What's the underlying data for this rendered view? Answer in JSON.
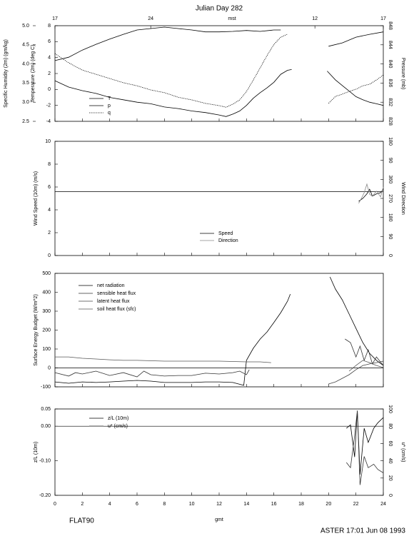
{
  "chart_data": [
    {
      "type": "line",
      "title": "Julian Day 282",
      "top_xlabel": "mst",
      "top_xticks": [
        {
          "value": 0,
          "label": "17"
        },
        {
          "value": 7,
          "label": "24"
        },
        {
          "value": 19,
          "label": "12"
        },
        {
          "value": 24,
          "label": "17"
        }
      ],
      "xlim": [
        0,
        24
      ],
      "ylabel": "Temperature (2m) (deg C)",
      "ylim": [
        -4,
        8
      ],
      "yticks": [
        -4,
        -2,
        0,
        2,
        4,
        6,
        8
      ],
      "y2label": "Pressure (mb)",
      "y2lim": [
        828,
        848
      ],
      "y2ticks": [
        828,
        832,
        836,
        840,
        844,
        848
      ],
      "y3label": "Specific Humidity (2m) (gm/kg)",
      "y3lim": [
        2.5,
        5.0
      ],
      "y3ticks": [
        2.5,
        {
          "value": 3,
          "label": "3.0"
        },
        3.5,
        {
          "value": 4,
          "label": "4.0"
        },
        4.5,
        {
          "value": 5,
          "label": "5.0"
        }
      ],
      "series": [
        {
          "name": "T",
          "color": "#000000",
          "style": "solid",
          "axis": "y",
          "x": [
            0,
            1,
            2,
            3,
            4,
            5,
            6,
            7,
            8,
            9,
            10,
            11,
            12,
            12.5,
            13,
            13.5,
            14,
            14.5,
            15,
            15.5,
            16,
            16.5,
            17,
            17.3,
            null,
            19.9,
            20.5,
            21,
            21.5,
            22,
            22.5,
            23,
            23.5,
            24
          ],
          "values": [
            1.1,
            0.3,
            -0.15,
            -0.5,
            -1.0,
            -1.3,
            -1.6,
            -1.8,
            -2.2,
            -2.4,
            -2.7,
            -2.9,
            -3.2,
            -3.4,
            -3.1,
            -2.7,
            -2.0,
            -1.1,
            -0.4,
            0.2,
            0.9,
            1.9,
            2.4,
            2.5,
            null,
            2.3,
            1.2,
            0.5,
            -0.2,
            -0.9,
            -1.3,
            -1.6,
            -1.8,
            -2.0
          ]
        },
        {
          "name": "p",
          "color": "#000000",
          "style": "solid",
          "axis": "y2",
          "x": [
            0,
            1,
            2,
            3,
            4,
            5,
            6,
            7,
            8,
            9,
            10,
            11,
            12,
            13,
            14,
            15,
            16,
            16.5,
            null,
            20,
            21,
            22,
            23,
            24
          ],
          "values": [
            840.7,
            841.4,
            842.9,
            844.1,
            845.2,
            846.2,
            847.1,
            847.4,
            847.7,
            847.4,
            847.1,
            846.7,
            846.7,
            846.8,
            847.0,
            846.8,
            847.1,
            847.1,
            null,
            843.7,
            844.4,
            845.6,
            846.2,
            846.7
          ]
        },
        {
          "name": "q",
          "color": "#000000",
          "style": "dotted",
          "axis": "y3",
          "x": [
            0,
            1,
            2,
            3,
            4,
            5,
            6,
            7,
            8,
            9,
            10,
            11,
            12,
            12.5,
            13,
            13.5,
            14,
            14.5,
            15,
            15.5,
            16,
            16.5,
            17,
            null,
            20,
            20.5,
            21,
            21.5,
            22,
            22.5,
            23,
            23.5,
            24
          ],
          "values": [
            4.27,
            4.03,
            3.84,
            3.73,
            3.62,
            3.51,
            3.43,
            3.32,
            3.25,
            3.13,
            3.06,
            2.97,
            2.91,
            2.87,
            2.95,
            3.06,
            3.28,
            3.58,
            3.9,
            4.22,
            4.51,
            4.7,
            4.78,
            null,
            2.97,
            3.15,
            3.21,
            3.28,
            3.34,
            3.43,
            3.47,
            3.58,
            3.71
          ]
        }
      ]
    },
    {
      "type": "line",
      "xlim": [
        0,
        24
      ],
      "ylabel": "Wind Speed (10m) (m/s)",
      "ylim": [
        0,
        10
      ],
      "yticks": [
        0,
        2,
        4,
        6,
        8,
        10
      ],
      "y2label": "Wind Direction",
      "y2lim": [
        0,
        540
      ],
      "y2ticks": [
        0,
        90,
        180,
        270,
        360,
        {
          "value": 450,
          "label": "90"
        },
        {
          "value": 540,
          "label": "180"
        }
      ],
      "hline": 5.6,
      "series": [
        {
          "name": "Speed",
          "color": "#000000",
          "style": "solid",
          "axis": "y",
          "x": [
            22.2,
            22.5,
            22.8,
            23,
            23.2,
            23.5,
            23.8,
            24
          ],
          "values": [
            4.75,
            5.0,
            5.4,
            5.8,
            5.2,
            5.4,
            5.5,
            5.8
          ]
        },
        {
          "name": "Direction",
          "color": "#888888",
          "style": "solid",
          "axis": "y2",
          "x": [
            22.2,
            22.4,
            22.6,
            22.8,
            23,
            23.2,
            23.5,
            23.8,
            24
          ],
          "values": [
            247,
            270,
            297,
            338,
            290,
            280,
            304,
            277,
            324
          ]
        }
      ]
    },
    {
      "type": "line",
      "xlim": [
        0,
        24
      ],
      "ylabel": "Surface Energy Budget (W/m^2)",
      "ylim": [
        -100,
        500
      ],
      "yticks": [
        -100,
        0,
        100,
        200,
        300,
        400,
        500
      ],
      "hline": 0,
      "series": [
        {
          "name": "net radiation",
          "color": "#000000",
          "style": "solid",
          "axis": "y",
          "x": [
            0,
            1,
            2,
            3,
            4,
            5,
            6,
            7,
            8,
            9,
            10,
            11,
            12,
            13,
            13.8,
            14,
            14.5,
            15,
            15.5,
            16,
            16.5,
            17,
            17.2,
            null,
            20.1,
            20.5,
            21,
            21.5,
            22,
            22.5,
            23,
            23.5,
            24
          ],
          "values": [
            -74,
            -81,
            -74,
            -77,
            -74,
            -70,
            -66,
            -70,
            -77,
            -77,
            -77,
            -74,
            -74,
            -77,
            -92,
            40,
            104,
            153,
            190,
            240,
            292,
            353,
            390,
            null,
            481,
            417,
            360,
            285,
            209,
            134,
            77,
            40,
            13
          ]
        },
        {
          "name": "sensible heat flux",
          "color": "#333333",
          "style": "solid",
          "axis": "y",
          "x": [
            0,
            1,
            1.5,
            2,
            3,
            4,
            5,
            6,
            6.5,
            7,
            8,
            9,
            10,
            11,
            12,
            13,
            13.5,
            14,
            14.2,
            null,
            21.2,
            21.6,
            22,
            22.3,
            22.6,
            22.9,
            23.2,
            23.5,
            24
          ],
          "values": [
            -25,
            -43,
            -25,
            -32,
            -17,
            -40,
            -25,
            -47,
            -17,
            -36,
            -43,
            -40,
            -40,
            -28,
            -32,
            -25,
            -17,
            -36,
            -9,
            null,
            153,
            134,
            58,
            115,
            40,
            96,
            21,
            58,
            13
          ]
        },
        {
          "name": "latent heat flux",
          "color": "#444444",
          "style": "solid",
          "axis": "y",
          "x": [
            20,
            20.5,
            21,
            21.5,
            22,
            22.5,
            23,
            23.5,
            24
          ],
          "values": [
            -85,
            -74,
            -55,
            -36,
            -9,
            13,
            21,
            28,
            36
          ]
        },
        {
          "name": "soil heat flux (sfc)",
          "color": "#555555",
          "style": "solid",
          "axis": "y",
          "x": [
            0,
            1,
            2,
            3,
            4,
            5,
            6,
            8,
            10,
            12,
            14,
            15,
            15.8,
            null,
            21.5,
            22,
            22.5,
            23,
            23.5,
            24
          ],
          "values": [
            58,
            58,
            51,
            47,
            43,
            40,
            40,
            36,
            36,
            36,
            32,
            32,
            28,
            null,
            -17,
            13,
            40,
            28,
            13,
            2
          ]
        }
      ]
    },
    {
      "type": "line",
      "xlim": [
        0,
        24
      ],
      "xlabel": "gmt",
      "xticks": [
        0,
        2,
        4,
        6,
        8,
        10,
        12,
        14,
        16,
        18,
        20,
        22,
        24
      ],
      "ylabel": "z/L (10m)",
      "ylim": [
        -0.2,
        0.05
      ],
      "yticks": [
        {
          "value": -0.2,
          "label": "-0.20"
        },
        {
          "value": -0.1,
          "label": "-0.10"
        },
        {
          "value": 0,
          "label": "0.00"
        },
        0.05
      ],
      "y2label": "u* (cm/s)",
      "y2lim": [
        0,
        100
      ],
      "y2ticks": [
        0,
        20,
        40,
        60,
        80,
        100
      ],
      "hline": 0,
      "series": [
        {
          "name": "z/L (10m)",
          "color": "#000000",
          "style": "solid",
          "axis": "y",
          "x": [
            21.3,
            21.6,
            21.9,
            22.1,
            22.3,
            22.6,
            22.9,
            23.3,
            23.6,
            24
          ],
          "values": [
            -0.006,
            0.004,
            -0.089,
            0.045,
            -0.14,
            -0.006,
            -0.047,
            -0.006,
            0.01,
            0.025
          ]
        },
        {
          "name": "u* (cm/s)",
          "color": "#333333",
          "style": "solid",
          "axis": "y2",
          "x": [
            21.3,
            21.6,
            21.9,
            22.1,
            22.3,
            22.6,
            22.9,
            23.3,
            23.6,
            24
          ],
          "values": [
            38,
            32,
            69,
            98,
            12,
            45,
            32,
            36,
            30,
            26
          ]
        }
      ]
    }
  ],
  "footer": {
    "left": "FLAT90",
    "right": "ASTER 17:01 Jun 08 1993"
  }
}
